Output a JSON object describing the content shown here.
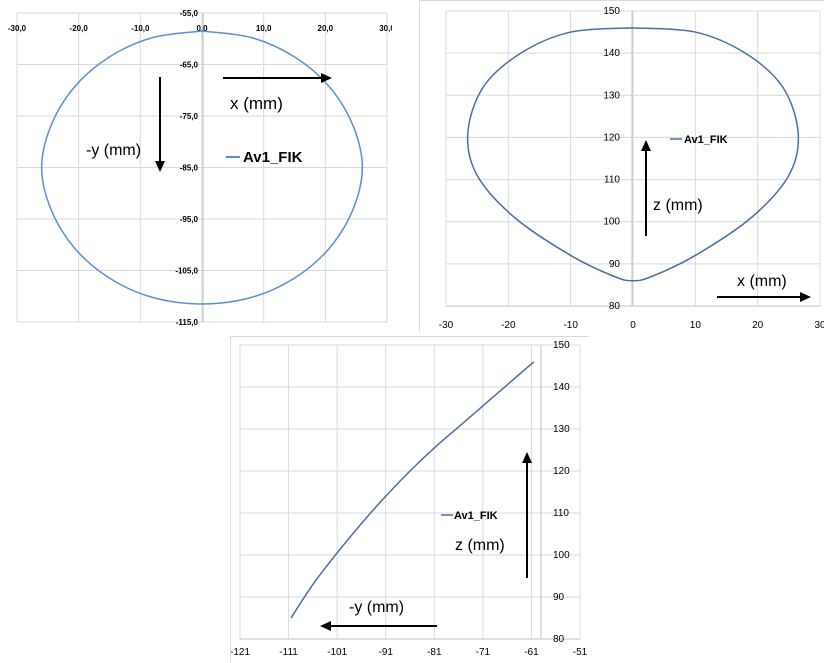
{
  "colors": {
    "series": "#5b8fd1",
    "series_dark": "#4a6fa5",
    "grid": "#d9d9d9"
  },
  "chart_data": [
    {
      "type": "line",
      "series": [
        {
          "name": "Av1_FIK",
          "x": [
            0,
            8.1,
            15.1,
            20.7,
            24.5,
            26.0,
            24.5,
            20.7,
            15.1,
            8.1,
            0,
            -8.1,
            -15.1,
            -20.7,
            -24.5,
            -26.0,
            -24.5,
            -20.7,
            -15.1,
            -8.1,
            0
          ],
          "y": [
            -58.5,
            -59.8,
            -63.6,
            -69.4,
            -76.9,
            -85.0,
            -93.1,
            -100.6,
            -106.4,
            -110.2,
            -111.5,
            -110.2,
            -106.4,
            -100.6,
            -93.1,
            -85.0,
            -76.9,
            -69.4,
            -63.6,
            -59.8,
            -58.5
          ]
        }
      ],
      "xlim": [
        -30,
        30
      ],
      "ylim": [
        -55,
        -115
      ],
      "xticks": [
        "-30,0",
        "-20,0",
        "-10,0",
        "0,0",
        "10,0",
        "20,0",
        "30,0"
      ],
      "yticks": [
        "-55,0",
        "-65,0",
        "-75,0",
        "-85,0",
        "-95,0",
        "-105,0",
        "-115,0"
      ],
      "legend": "center",
      "grid": true,
      "annotations": {
        "x_label": "x (mm)",
        "y_label": "-y (mm)"
      }
    },
    {
      "type": "line",
      "series": [
        {
          "name": "Av1_FIK",
          "x": [
            0,
            10,
            18,
            24,
            26.5,
            25,
            19,
            10,
            3,
            0,
            -3,
            -10,
            -19,
            -25,
            -26.5,
            -24,
            -18,
            -10,
            0
          ],
          "y": [
            146,
            145,
            140,
            132,
            121,
            111,
            101,
            92,
            87,
            86,
            87,
            92,
            101,
            111,
            121,
            132,
            140,
            145,
            146
          ]
        }
      ],
      "xlim": [
        -30,
        30
      ],
      "ylim": [
        80,
        150
      ],
      "xticks": [
        "-30",
        "-20",
        "-10",
        "0",
        "10",
        "20",
        "30"
      ],
      "yticks": [
        "80",
        "90",
        "100",
        "110",
        "120",
        "130",
        "140",
        "150"
      ],
      "legend": "center",
      "grid": true,
      "annotations": {
        "x_label": "x (mm)",
        "y_label": "z (mm)"
      }
    },
    {
      "type": "line",
      "series": [
        {
          "name": "Av1_FIK",
          "x": [
            -110.5,
            -106,
            -101,
            -96,
            -91,
            -86,
            -81,
            -76,
            -71,
            -66,
            -60.5
          ],
          "y": [
            85,
            93,
            100.5,
            107.5,
            114,
            120,
            125.5,
            130.5,
            135.5,
            140.5,
            146
          ]
        }
      ],
      "xlim": [
        -121,
        -51
      ],
      "ylim": [
        80,
        150
      ],
      "xticks": [
        "-121",
        "-111",
        "-101",
        "-91",
        "-81",
        "-71",
        "-61",
        "-51"
      ],
      "yticks": [
        "80",
        "90",
        "100",
        "110",
        "120",
        "130",
        "140",
        "150"
      ],
      "legend": "center",
      "grid": true,
      "annotations": {
        "x_label": "-y (mm)",
        "y_label": "z (mm)"
      }
    }
  ]
}
